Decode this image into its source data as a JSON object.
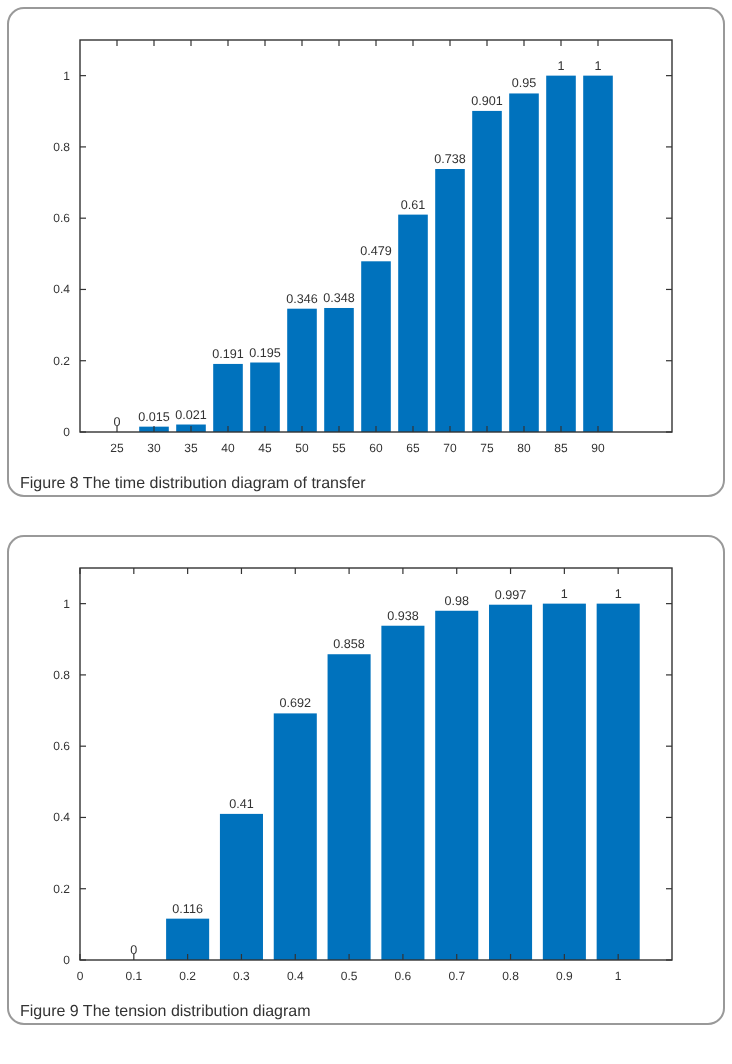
{
  "chart_data": [
    {
      "type": "bar",
      "x": [
        25,
        30,
        35,
        40,
        45,
        50,
        55,
        60,
        65,
        70,
        75,
        80,
        85,
        90
      ],
      "color": "#0072bd",
      "values": [
        0,
        0.015,
        0.021,
        0.191,
        0.195,
        0.346,
        0.348,
        0.479,
        0.61,
        0.738,
        0.901,
        0.95,
        1,
        1
      ],
      "xlim": [
        20,
        100
      ],
      "xticks": [
        25,
        30,
        35,
        40,
        45,
        50,
        55,
        60,
        65,
        70,
        75,
        80,
        85,
        90
      ],
      "ylim": [
        0,
        1.1
      ],
      "yticks": [
        0,
        0.2,
        0.4,
        0.6,
        0.8,
        1
      ],
      "data_labels": true,
      "grid": false,
      "annotations": [
        "Figure 8 The time distribution diagram of transfer"
      ]
    },
    {
      "type": "bar",
      "x": [
        0.1,
        0.2,
        0.3,
        0.4,
        0.5,
        0.6,
        0.7,
        0.8,
        0.9,
        1
      ],
      "color": "#0072bd",
      "values": [
        0,
        0.116,
        0.41,
        0.692,
        0.858,
        0.938,
        0.98,
        0.997,
        1,
        1
      ],
      "xlim": [
        0,
        1.1
      ],
      "xticks": [
        0,
        0.1,
        0.2,
        0.3,
        0.4,
        0.5,
        0.6,
        0.7,
        0.8,
        0.9,
        1
      ],
      "ylim": [
        0,
        1.1
      ],
      "yticks": [
        0,
        0.2,
        0.4,
        0.6,
        0.8,
        1
      ],
      "data_labels": true,
      "grid": false,
      "annotations": [
        "Figure 9 The tension distribution diagram"
      ]
    }
  ]
}
